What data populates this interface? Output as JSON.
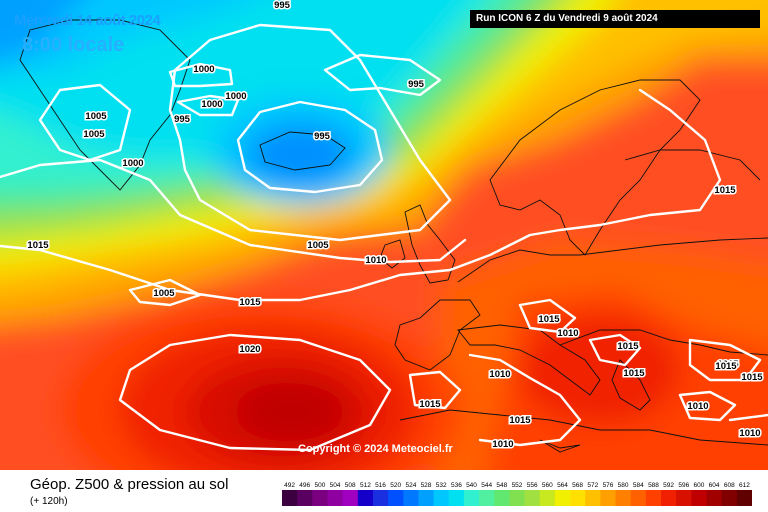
{
  "header": {
    "date": "Mercredi 14 août 2024",
    "time": "8:00 locale",
    "run": "Run ICON 6 Z du Vendredi 9 août 2024"
  },
  "copyright": "Copyright © 2024 Meteociel.fr",
  "footer": {
    "title": "Géop. Z500 & pression au sol",
    "subtitle": "(+ 120h)"
  },
  "scale": {
    "labels": [
      "492",
      "496",
      "500",
      "504",
      "508",
      "512",
      "516",
      "520",
      "524",
      "528",
      "532",
      "536",
      "540",
      "544",
      "548",
      "552",
      "556",
      "560",
      "564",
      "568",
      "572",
      "576",
      "580",
      "584",
      "588",
      "592",
      "596",
      "600",
      "604",
      "608",
      "612"
    ],
    "colors": [
      "#3c0040",
      "#5a0060",
      "#7a0080",
      "#8e00a0",
      "#a000c0",
      "#1400c8",
      "#1a30e0",
      "#0050ff",
      "#0078ff",
      "#00a0ff",
      "#00c8ff",
      "#00e0f0",
      "#30f0d0",
      "#50f0a0",
      "#60e870",
      "#80e050",
      "#a0e040",
      "#c8e820",
      "#f0f000",
      "#ffe000",
      "#ffc000",
      "#ffa000",
      "#ff8000",
      "#ff6000",
      "#ff4000",
      "#f02000",
      "#d81000",
      "#c00000",
      "#a00000",
      "#800000",
      "#600000"
    ]
  },
  "isobars": [
    {
      "label": "995"
    },
    {
      "label": "1000"
    },
    {
      "label": "1000"
    },
    {
      "label": "1000"
    },
    {
      "label": "995"
    },
    {
      "label": "1005"
    },
    {
      "label": "1005"
    },
    {
      "label": "1000"
    },
    {
      "label": "995"
    },
    {
      "label": "995"
    },
    {
      "label": "1015"
    },
    {
      "label": "1005"
    },
    {
      "label": "1005"
    },
    {
      "label": "1010"
    },
    {
      "label": "1015"
    },
    {
      "label": "1020"
    },
    {
      "label": "1015"
    },
    {
      "label": "1015"
    },
    {
      "label": "1010"
    },
    {
      "label": "1015"
    },
    {
      "label": "1015"
    },
    {
      "label": "1010"
    },
    {
      "label": "1015"
    },
    {
      "label": "1015"
    },
    {
      "label": "1015"
    },
    {
      "label": "1010"
    },
    {
      "label": "1015"
    },
    {
      "label": "1015"
    },
    {
      "label": "1010"
    },
    {
      "label": "1010"
    }
  ]
}
